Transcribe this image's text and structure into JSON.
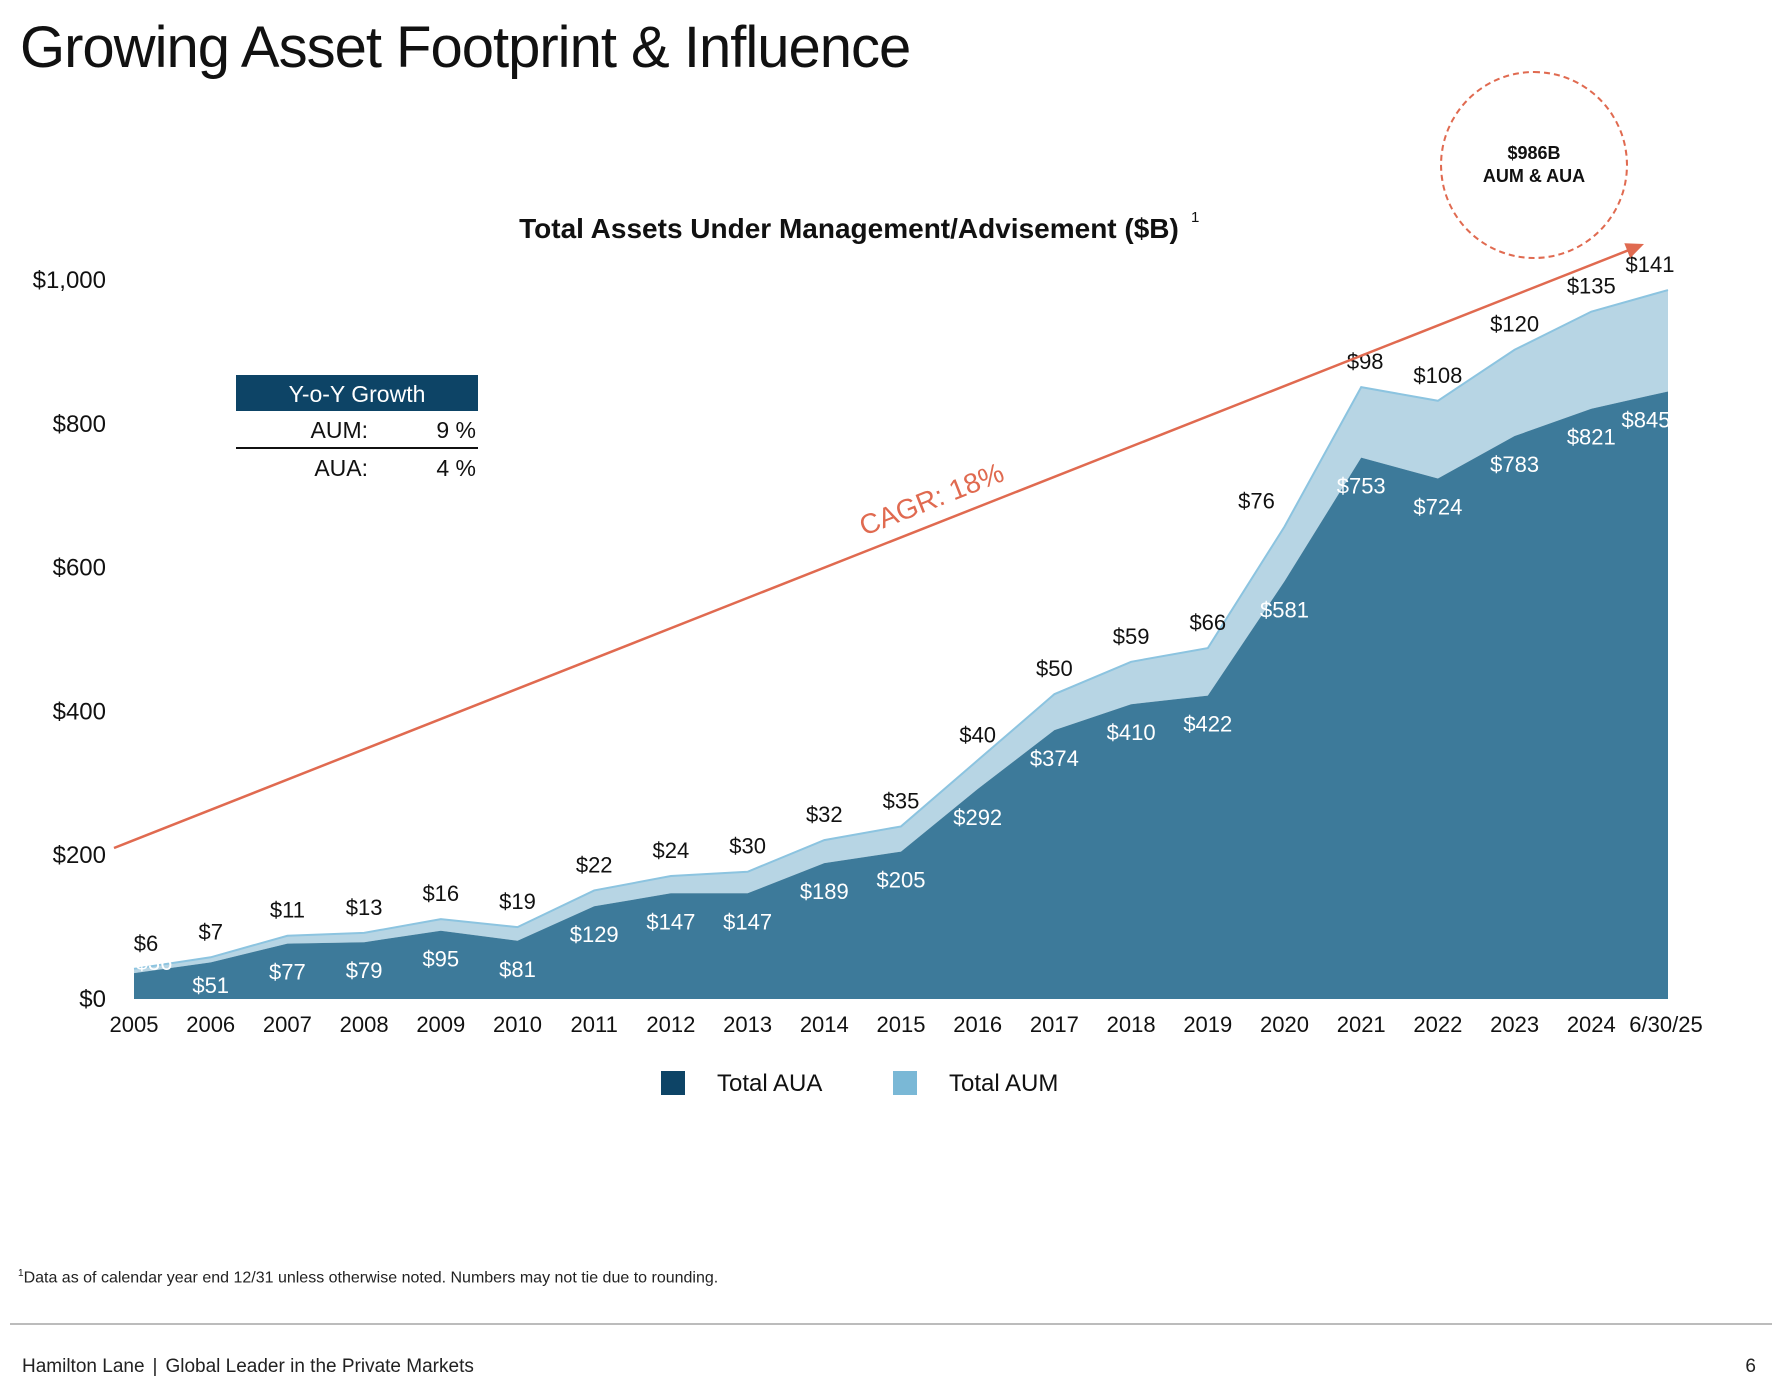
{
  "page": {
    "title": "Growing Asset Footprint & Influence",
    "footnote_marker": "1",
    "footnote": "Data as of calendar year end 12/31 unless otherwise noted. Numbers may not tie due to rounding.",
    "footer_company": "Hamilton Lane",
    "footer_separator": "|",
    "footer_tagline": "Global Leader in the Private Markets",
    "page_number": "6"
  },
  "growth_table": {
    "header": "Y-o-Y Growth",
    "rows": [
      {
        "label": "AUM:",
        "value": "9 %"
      },
      {
        "label": "AUA:",
        "value": "4 %"
      }
    ]
  },
  "callout": {
    "line1": "$986B",
    "line2": "AUM & AUA"
  },
  "chart_data": {
    "type": "area",
    "stacked": true,
    "title": "Total Assets Under Management/Advisement ($B)",
    "title_superscript": "1",
    "categories": [
      "2005",
      "2006",
      "2007",
      "2008",
      "2009",
      "2010",
      "2011",
      "2012",
      "2013",
      "2014",
      "2015",
      "2016",
      "2017",
      "2018",
      "2019",
      "2020",
      "2021",
      "2022",
      "2023",
      "2024",
      "6/30/25"
    ],
    "series": [
      {
        "name": "Total AUA",
        "values": [
          36,
          51,
          77,
          79,
          95,
          81,
          129,
          147,
          147,
          189,
          205,
          292,
          374,
          410,
          422,
          581,
          753,
          724,
          783,
          821,
          845
        ],
        "color": "#3d7a9a"
      },
      {
        "name": "Total AUM",
        "values": [
          6,
          7,
          11,
          13,
          16,
          19,
          22,
          24,
          30,
          32,
          35,
          40,
          50,
          59,
          66,
          76,
          98,
          108,
          120,
          135,
          141
        ],
        "color": "#b7d5e4"
      }
    ],
    "data_labels_aua": [
      "$36",
      "$51",
      "$77",
      "$79",
      "$95",
      "$81",
      "$129",
      "$147",
      "$147",
      "$189",
      "$205",
      "$292",
      "$374",
      "$410",
      "$422",
      "$581",
      "$753",
      "$724",
      "$783",
      "$821",
      "$845"
    ],
    "data_labels_aum": [
      "$6",
      "$7",
      "$11",
      "$13",
      "$16",
      "$19",
      "$22",
      "$24",
      "$30",
      "$32",
      "$35",
      "$40",
      "$50",
      "$59",
      "$66",
      "$76",
      "$98",
      "$108",
      "$120",
      "$135",
      "$141"
    ],
    "ylim": [
      0,
      1000
    ],
    "y_ticks": [
      0,
      200,
      400,
      600,
      800,
      1000
    ],
    "y_tick_labels": [
      "$0",
      "$200",
      "$400",
      "$600",
      "$800",
      "$1,000"
    ],
    "xlabel": "",
    "ylabel": "",
    "legend": [
      {
        "label": "Total AUA",
        "color": "#0d4466"
      },
      {
        "label": "Total AUM",
        "color": "#7ab8d6"
      }
    ],
    "legend_position": "bottom-center",
    "annotation": {
      "text": "CAGR: 18%",
      "color": "#e06a50",
      "trend_start_value": 210,
      "trend_end_value": 1050
    }
  }
}
